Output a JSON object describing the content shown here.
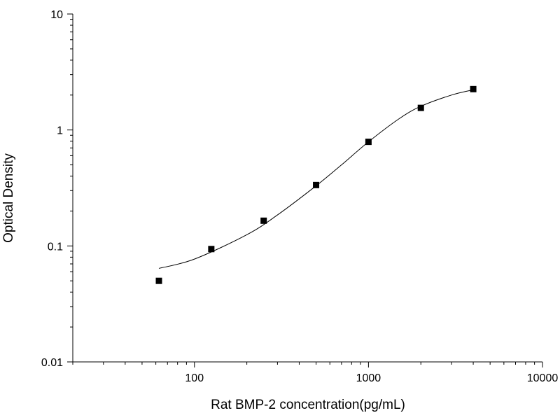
{
  "chart_data": {
    "type": "scatter",
    "xlabel": "Rat BMP-2 concentration(pg/mL)",
    "ylabel": "Optical Density",
    "x_scale": "log",
    "y_scale": "log",
    "xlim": [
      20,
      10000
    ],
    "ylim": [
      0.01,
      10
    ],
    "x_ticks": [
      {
        "value": 100,
        "label": "100"
      },
      {
        "value": 1000,
        "label": "1000"
      },
      {
        "value": 10000,
        "label": "10000"
      }
    ],
    "y_ticks": [
      {
        "value": 10,
        "label": "10"
      },
      {
        "value": 1,
        "label": "1"
      },
      {
        "value": 0.1,
        "label": "0.1"
      },
      {
        "value": 0.01,
        "label": "0.01"
      }
    ],
    "series": [
      {
        "x": [
          62.5,
          125,
          250,
          500,
          1000,
          2000,
          4000
        ],
        "y": [
          0.05,
          0.094,
          0.165,
          0.335,
          0.79,
          1.55,
          2.25
        ]
      }
    ],
    "fit_curve": {
      "x": [
        62.5,
        100,
        200,
        300,
        500,
        700,
        1000,
        1500,
        2000,
        3000,
        4000
      ],
      "y": [
        0.064,
        0.077,
        0.125,
        0.185,
        0.33,
        0.5,
        0.79,
        1.25,
        1.6,
        2.0,
        2.22
      ]
    },
    "grid": false,
    "legend": "none",
    "colors": {
      "marker": "#000000",
      "line": "#000000"
    }
  }
}
